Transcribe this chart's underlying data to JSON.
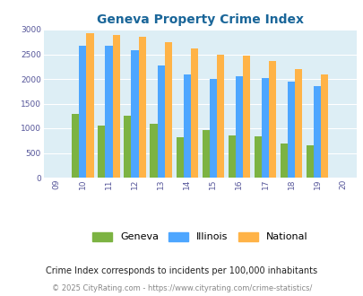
{
  "title": "Geneva Property Crime Index",
  "years": [
    2009,
    2010,
    2011,
    2012,
    2013,
    2014,
    2015,
    2016,
    2017,
    2018,
    2019,
    2020
  ],
  "year_labels": [
    "09",
    "10",
    "11",
    "12",
    "13",
    "14",
    "15",
    "16",
    "17",
    "18",
    "19",
    "20"
  ],
  "geneva": [
    null,
    1290,
    1060,
    1250,
    1100,
    820,
    960,
    850,
    830,
    700,
    660,
    null
  ],
  "illinois": [
    null,
    2670,
    2670,
    2580,
    2280,
    2090,
    2000,
    2050,
    2020,
    1940,
    1850,
    null
  ],
  "national": [
    null,
    2920,
    2900,
    2860,
    2750,
    2610,
    2500,
    2470,
    2360,
    2200,
    2100,
    null
  ],
  "geneva_color": "#7cb342",
  "illinois_color": "#4da6ff",
  "national_color": "#ffb347",
  "bg_color": "#ddeef5",
  "ylim": [
    0,
    3000
  ],
  "yticks": [
    0,
    500,
    1000,
    1500,
    2000,
    2500,
    3000
  ],
  "subtitle": "Crime Index corresponds to incidents per 100,000 inhabitants",
  "footer": "© 2025 CityRating.com - https://www.cityrating.com/crime-statistics/",
  "bar_width": 0.28
}
